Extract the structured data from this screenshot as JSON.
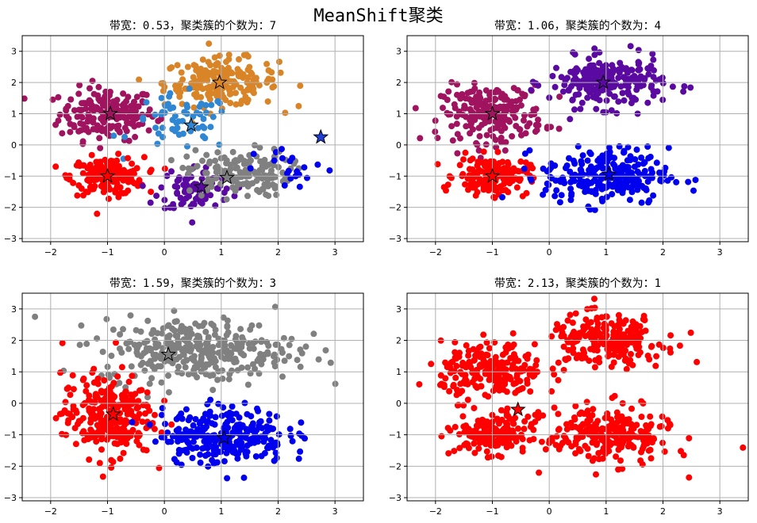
{
  "suptitle": "MeanShift聚类",
  "chart_data": [
    {
      "type": "scatter",
      "title": "带宽：0.53，聚类簇的个数为：7",
      "xlim": [
        -2.5,
        3.5
      ],
      "ylim": [
        -3.1,
        3.5
      ],
      "xticks": [
        -2,
        -1,
        0,
        1,
        2,
        3
      ],
      "yticks": [
        -3,
        -2,
        -1,
        0,
        1,
        2,
        3
      ],
      "grid": true,
      "clusters": [
        {
          "color": "#a0135e",
          "center": [
            -1.0,
            1.0
          ],
          "sx": 0.42,
          "sy": 0.42,
          "n": 190
        },
        {
          "color": "#d98426",
          "center": [
            1.0,
            2.0
          ],
          "sx": 0.5,
          "sy": 0.38,
          "n": 200
        },
        {
          "color": "#2f86d2",
          "center": [
            0.3,
            0.7
          ],
          "sx": 0.45,
          "sy": 0.45,
          "n": 60
        },
        {
          "color": "#ff0000",
          "center": [
            -1.0,
            -1.0
          ],
          "sx": 0.32,
          "sy": 0.3,
          "n": 170
        },
        {
          "color": "#5a0aa0",
          "center": [
            0.55,
            -1.4
          ],
          "sx": 0.32,
          "sy": 0.38,
          "n": 90
        },
        {
          "color": "#808080",
          "center": [
            1.3,
            -0.9
          ],
          "sx": 0.45,
          "sy": 0.38,
          "n": 150
        },
        {
          "color": "#0000ee",
          "center": [
            2.3,
            -0.8
          ],
          "sx": 0.35,
          "sy": 0.35,
          "n": 20
        }
      ],
      "centers": [
        {
          "x": -0.95,
          "y": 1.0,
          "color": "#a0135e"
        },
        {
          "x": 0.97,
          "y": 2.0,
          "color": "#d98426"
        },
        {
          "x": 0.47,
          "y": 0.63,
          "color": "#2f86d2"
        },
        {
          "x": 2.75,
          "y": 0.25,
          "color": "#1f3fd9"
        },
        {
          "x": -1.0,
          "y": -1.0,
          "color": "#ff0000"
        },
        {
          "x": 0.65,
          "y": -1.35,
          "color": "#5a0aa0"
        },
        {
          "x": 1.1,
          "y": -1.05,
          "color": "#808080"
        }
      ]
    },
    {
      "type": "scatter",
      "title": "带宽：1.06，聚类簇的个数为：4",
      "xlim": [
        -2.5,
        3.5
      ],
      "ylim": [
        -3.1,
        3.5
      ],
      "xticks": [
        -2,
        -1,
        0,
        1,
        2,
        3
      ],
      "yticks": [
        -3,
        -2,
        -1,
        0,
        1,
        2,
        3
      ],
      "grid": true,
      "clusters": [
        {
          "color": "#a0135e",
          "center": [
            -1.0,
            1.0
          ],
          "sx": 0.45,
          "sy": 0.45,
          "n": 220
        },
        {
          "color": "#5a0aa0",
          "center": [
            1.0,
            2.0
          ],
          "sx": 0.5,
          "sy": 0.4,
          "n": 230
        },
        {
          "color": "#ff0000",
          "center": [
            -1.0,
            -1.0
          ],
          "sx": 0.32,
          "sy": 0.3,
          "n": 170
        },
        {
          "color": "#0000ee",
          "center": [
            1.0,
            -1.0
          ],
          "sx": 0.55,
          "sy": 0.45,
          "n": 250
        }
      ],
      "centers": [
        {
          "x": -1.0,
          "y": 1.0,
          "color": "#a0135e"
        },
        {
          "x": 0.95,
          "y": 2.0,
          "color": "#5a0aa0"
        },
        {
          "x": -1.0,
          "y": -1.0,
          "color": "#ff0000"
        },
        {
          "x": 1.05,
          "y": -0.95,
          "color": "#0000ee"
        }
      ]
    },
    {
      "type": "scatter",
      "title": "带宽：1.59，聚类簇的个数为：3",
      "xlim": [
        -2.5,
        3.5
      ],
      "ylim": [
        -3.1,
        3.5
      ],
      "xticks": [
        -2,
        -1,
        0,
        1,
        2,
        3
      ],
      "yticks": [
        -3,
        -2,
        -1,
        0,
        1,
        2,
        3
      ],
      "grid": true,
      "clusters": [
        {
          "color": "#808080",
          "center": [
            0.6,
            1.7
          ],
          "sx": 0.85,
          "sy": 0.5,
          "n": 330
        },
        {
          "color": "#ff0000",
          "center": [
            -1.0,
            -0.4
          ],
          "sx": 0.4,
          "sy": 0.65,
          "n": 260
        },
        {
          "color": "#0000ee",
          "center": [
            1.05,
            -1.0
          ],
          "sx": 0.55,
          "sy": 0.45,
          "n": 270
        }
      ],
      "centers": [
        {
          "x": 0.07,
          "y": 1.55,
          "color": "#808080"
        },
        {
          "x": -0.9,
          "y": -0.35,
          "color": "#ff0000"
        },
        {
          "x": 1.05,
          "y": -1.1,
          "color": "#0000ee"
        }
      ]
    },
    {
      "type": "scatter",
      "title": "带宽：2.13，聚类簇的个数为：1",
      "xlim": [
        -2.5,
        3.5
      ],
      "ylim": [
        -3.1,
        3.5
      ],
      "xticks": [
        -2,
        -1,
        0,
        1,
        2,
        3
      ],
      "yticks": [
        -3,
        -2,
        -1,
        0,
        1,
        2,
        3
      ],
      "grid": true,
      "clusters": [
        {
          "color": "#ff0000",
          "center": [
            -1.0,
            1.0
          ],
          "sx": 0.45,
          "sy": 0.45,
          "n": 220
        },
        {
          "color": "#ff0000",
          "center": [
            1.0,
            2.0
          ],
          "sx": 0.5,
          "sy": 0.4,
          "n": 230
        },
        {
          "color": "#ff0000",
          "center": [
            -1.0,
            -1.0
          ],
          "sx": 0.32,
          "sy": 0.3,
          "n": 170
        },
        {
          "color": "#ff0000",
          "center": [
            1.05,
            -1.0
          ],
          "sx": 0.55,
          "sy": 0.45,
          "n": 250
        }
      ],
      "centers": [
        {
          "x": -0.55,
          "y": -0.2,
          "color": "#ff0000"
        }
      ]
    }
  ]
}
